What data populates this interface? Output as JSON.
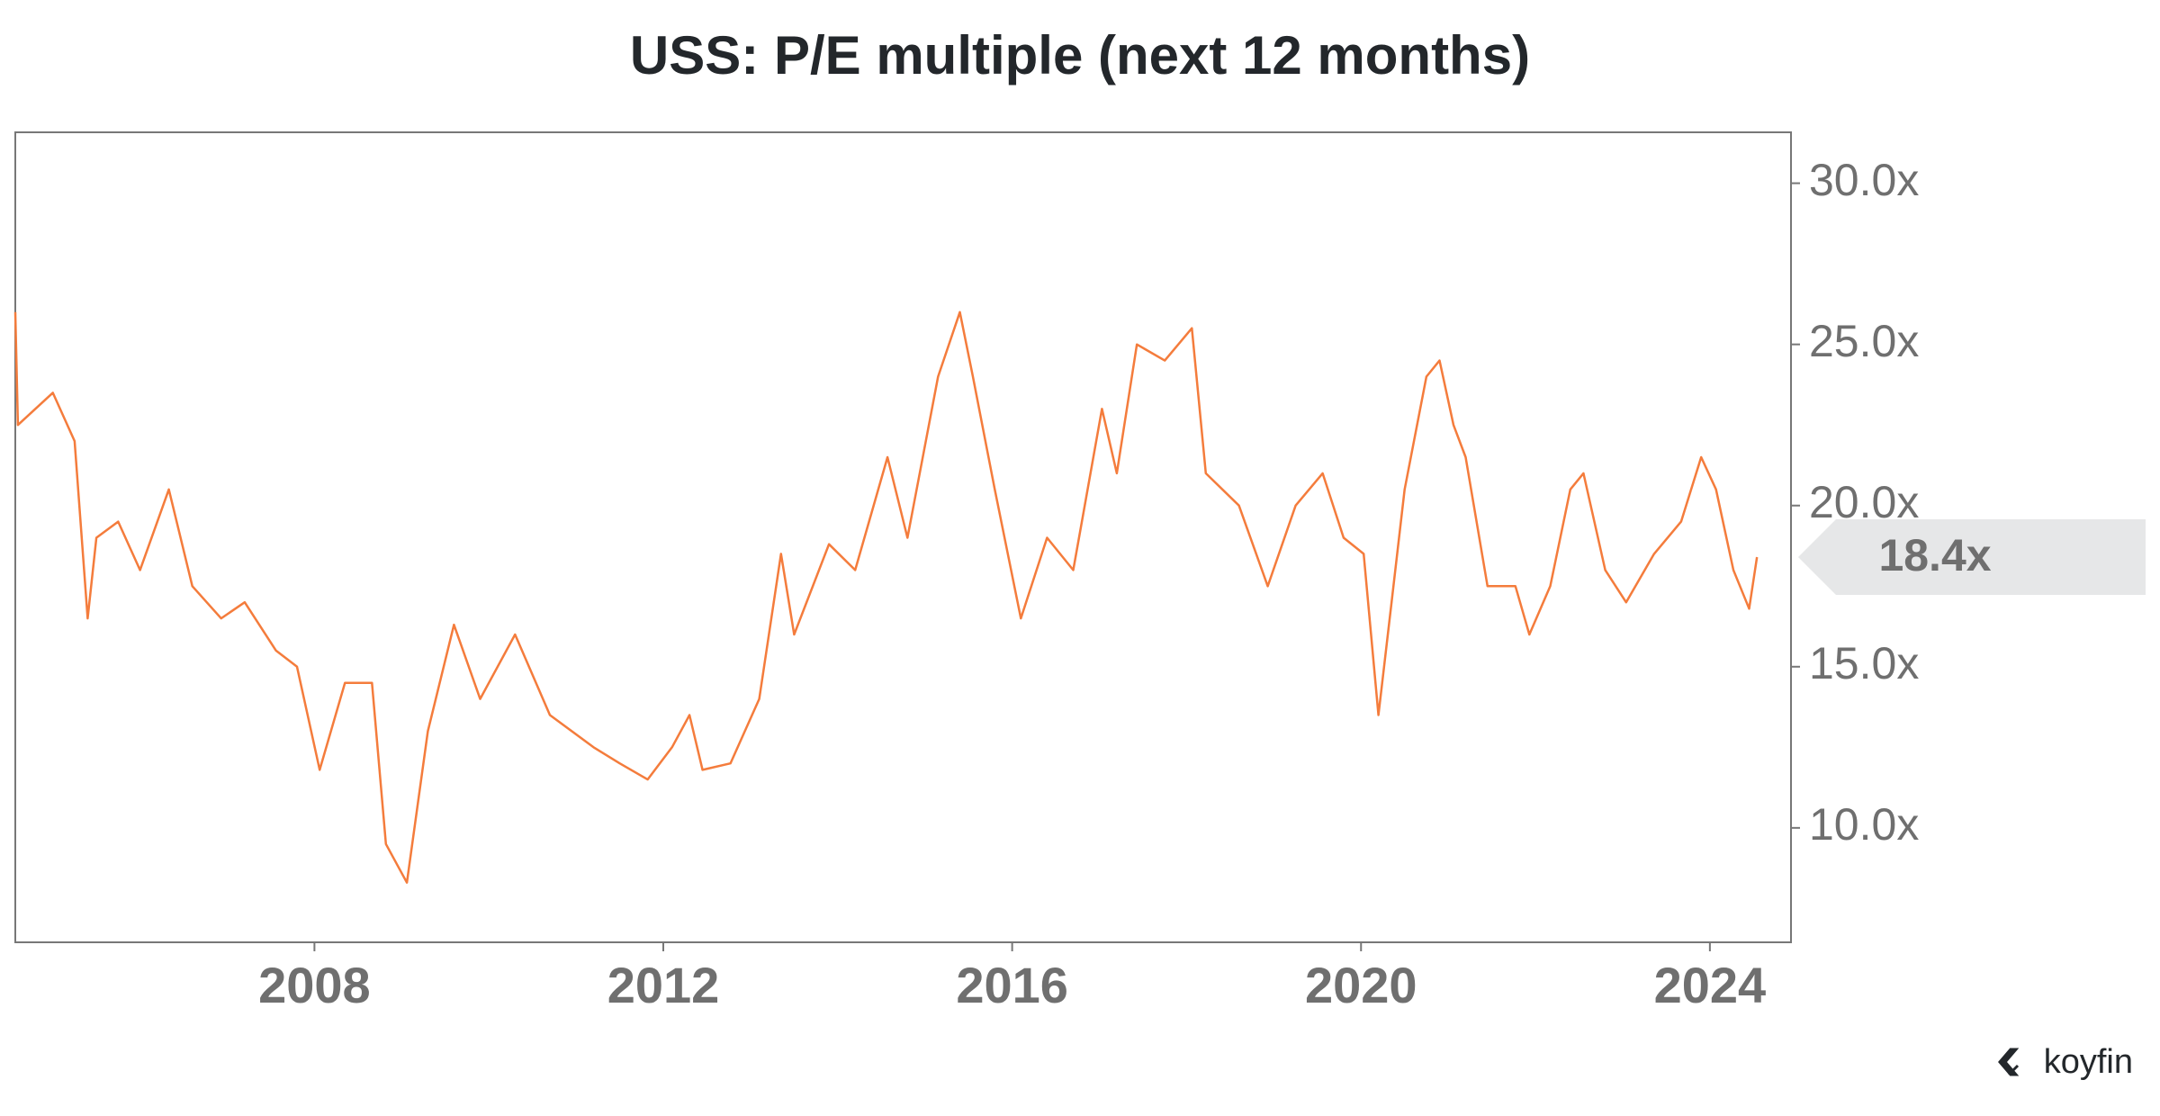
{
  "chart_data": {
    "type": "line",
    "title": "USS: P/E multiple (next 12 months)",
    "x": [
      2004.57,
      2004.6,
      2005.0,
      2005.25,
      2005.4,
      2005.5,
      2005.75,
      2006.0,
      2006.33,
      2006.6,
      2006.93,
      2007.2,
      2007.56,
      2007.8,
      2008.06,
      2008.35,
      2008.66,
      2008.82,
      2009.06,
      2009.3,
      2009.6,
      2009.9,
      2010.3,
      2010.7,
      2011.2,
      2011.5,
      2011.82,
      2012.1,
      2012.3,
      2012.45,
      2012.77,
      2013.1,
      2013.35,
      2013.5,
      2013.9,
      2014.2,
      2014.57,
      2014.8,
      2015.15,
      2015.4,
      2015.55,
      2015.8,
      2016.1,
      2016.4,
      2016.7,
      2017.03,
      2017.2,
      2017.43,
      2017.75,
      2018.06,
      2018.22,
      2018.6,
      2018.93,
      2019.25,
      2019.56,
      2019.8,
      2020.03,
      2020.2,
      2020.35,
      2020.5,
      2020.75,
      2020.9,
      2021.06,
      2021.2,
      2021.45,
      2021.77,
      2021.93,
      2022.17,
      2022.4,
      2022.55,
      2022.8,
      2023.04,
      2023.36,
      2023.67,
      2023.9,
      2024.07,
      2024.27,
      2024.45,
      2024.54
    ],
    "series": [
      {
        "color": "#f47c3c",
        "values": [
          26,
          22.5,
          23.5,
          22,
          16.5,
          19,
          19.5,
          18,
          20.5,
          17.5,
          16.5,
          17,
          15.5,
          15,
          11.8,
          14.5,
          14.5,
          9.5,
          8.3,
          13,
          16.3,
          14,
          16,
          13.5,
          12.5,
          12,
          11.5,
          12.5,
          13.5,
          11.8,
          12,
          14,
          18.5,
          16,
          18.8,
          18,
          21.5,
          19,
          24,
          26,
          24,
          20.5,
          16.5,
          19,
          18,
          23,
          21,
          25,
          24.5,
          25.5,
          21,
          20,
          17.5,
          20,
          21,
          19,
          18.5,
          13.5,
          17,
          20.5,
          24,
          24.5,
          22.5,
          21.5,
          17.5,
          17.5,
          16,
          17.5,
          20.5,
          21,
          18,
          17,
          18.5,
          19.5,
          21.5,
          20.5,
          18,
          16.8,
          18.4
        ]
      }
    ],
    "xlim": [
      2004.57,
      2024.93
    ],
    "xticks": [
      2008,
      2012,
      2016,
      2020,
      2024
    ],
    "ylim": [
      6.45,
      31.58
    ],
    "yticks": [
      {
        "value": 10,
        "label": "10.0x"
      },
      {
        "value": 15,
        "label": "15.0x"
      },
      {
        "value": 20,
        "label": "20.0x"
      },
      {
        "value": 25,
        "label": "25.0x"
      },
      {
        "value": 30,
        "label": "30.0x"
      }
    ],
    "last_value": {
      "value": 18.4,
      "label": "18.4x"
    },
    "source": "koyfin"
  }
}
